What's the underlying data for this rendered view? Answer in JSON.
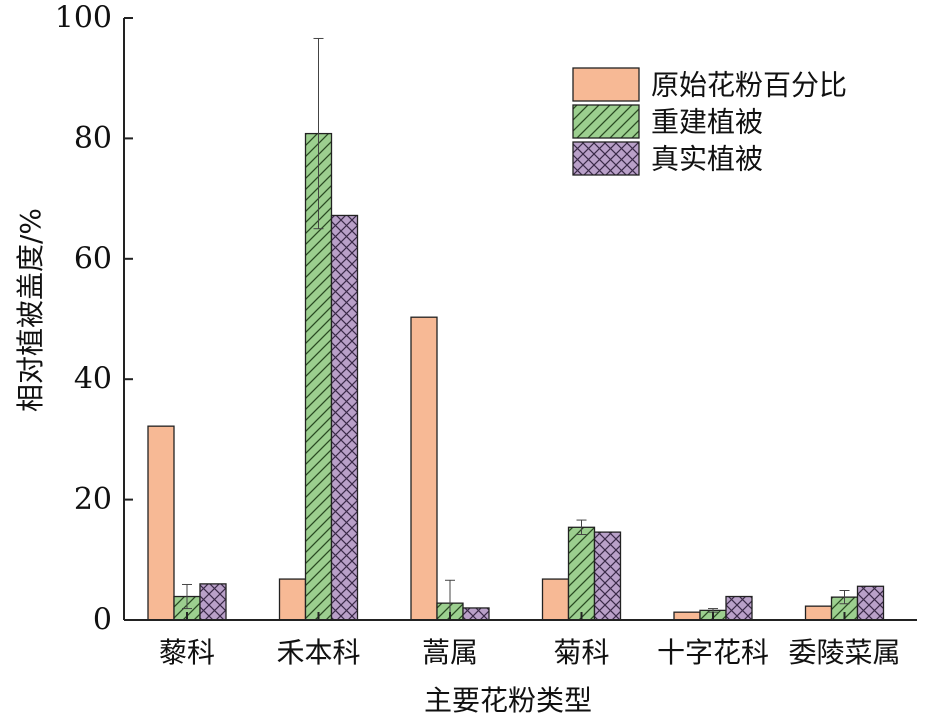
{
  "chart_data": {
    "type": "bar",
    "title": "",
    "xlabel": "主要花粉类型",
    "ylabel": "相对植被盖度/%",
    "ylim": [
      0,
      100
    ],
    "yticks": [
      0,
      20,
      40,
      60,
      80,
      100
    ],
    "grid": false,
    "legend_position": "top-right",
    "categories": [
      "藜科",
      "禾本科",
      "蒿属",
      "菊科",
      "十字花科",
      "委陵菜属"
    ],
    "series": [
      {
        "name": "原始花粉百分比",
        "color": "#f7b995",
        "pattern": "solid",
        "values": [
          32.2,
          6.8,
          50.3,
          6.8,
          1.3,
          2.3
        ],
        "errors": null
      },
      {
        "name": "重建植被",
        "color": "#9ccf8f",
        "pattern": "hatch",
        "values": [
          3.9,
          80.8,
          2.8,
          15.4,
          1.6,
          3.8
        ],
        "errors": [
          2.0,
          15.8,
          3.8,
          1.2,
          0.3,
          1.1
        ]
      },
      {
        "name": "真实植被",
        "color": "#b9a0c8",
        "pattern": "crosshatch",
        "values": [
          6.0,
          67.2,
          2.0,
          14.6,
          3.9,
          5.6
        ],
        "errors": null
      }
    ]
  }
}
